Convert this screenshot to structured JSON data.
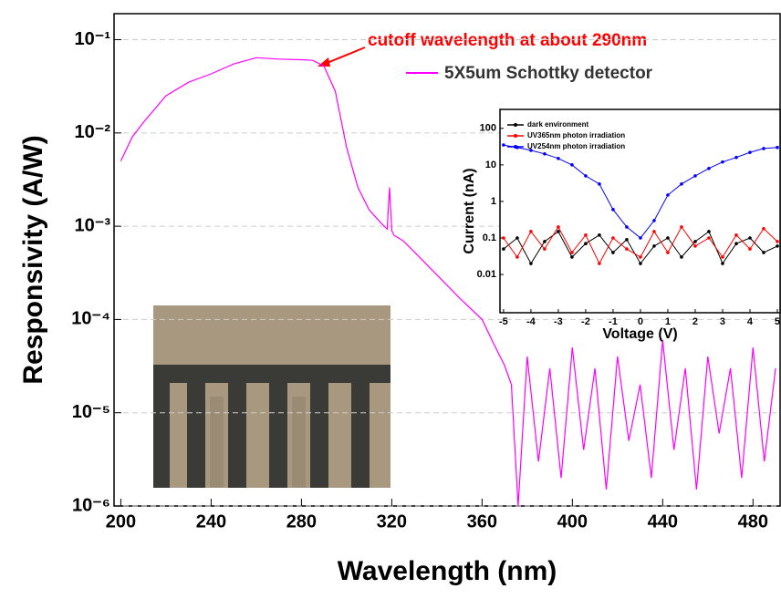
{
  "chart_data": [
    {
      "type": "line",
      "log_y": true,
      "grid": true,
      "xlabel": "Wavelength (nm)",
      "ylabel": "Responsivity (A/W)",
      "annotation": "cutoff wavelength at about 290nm",
      "xlim": [
        197,
        492
      ],
      "ylim": [
        1e-06,
        0.19
      ],
      "xticks": [
        200,
        240,
        280,
        320,
        360,
        400,
        440,
        480
      ],
      "yticks": [
        {
          "value": 1e-06,
          "label": "10⁻⁶"
        },
        {
          "value": 1e-05,
          "label": "10⁻⁵"
        },
        {
          "value": 0.0001,
          "label": "10⁻⁴"
        },
        {
          "value": 0.001,
          "label": "10⁻³"
        },
        {
          "value": 0.01,
          "label": "10⁻²"
        },
        {
          "value": 0.1,
          "label": "10⁻¹"
        }
      ],
      "x": [
        200,
        205,
        210,
        220,
        230,
        240,
        250,
        260,
        270,
        280,
        285,
        290,
        295,
        300,
        305,
        310,
        315,
        318,
        319,
        320,
        321,
        325,
        330,
        340,
        350,
        360,
        365,
        370,
        373,
        376,
        380,
        385,
        390,
        395,
        400,
        405,
        410,
        415,
        420,
        425,
        430,
        435,
        440,
        445,
        450,
        455,
        460,
        465,
        470,
        475,
        480,
        485,
        490
      ],
      "series": [
        {
          "name": "5X5um Schottky detector",
          "color": "#ff00ff",
          "values": [
            0.005,
            0.009,
            0.013,
            0.025,
            0.035,
            0.043,
            0.055,
            0.064,
            0.062,
            0.061,
            0.06,
            0.052,
            0.028,
            0.007,
            0.0026,
            0.0015,
            0.0011,
            0.00093,
            0.0026,
            0.0009,
            0.0008,
            0.0007,
            0.00053,
            0.0003,
            0.00017,
            0.0001,
            5.6e-05,
            3.2e-05,
            2e-05,
            1e-06,
            4e-05,
            3e-06,
            3e-05,
            2e-06,
            5e-05,
            4e-06,
            3e-05,
            1.5e-06,
            4e-05,
            5e-06,
            2e-05,
            2e-06,
            6e-05,
            4e-06,
            3e-05,
            1.5e-06,
            4e-05,
            6e-06,
            3e-05,
            2e-06,
            5e-05,
            3e-06,
            3e-05
          ]
        }
      ]
    },
    {
      "type": "line",
      "log_y": true,
      "grid": false,
      "xlabel": "Voltage (V)",
      "ylabel": "Current (nA)",
      "xlim": [
        -5.13,
        5.1
      ],
      "ylim": [
        0.0009,
        330
      ],
      "xticks": [
        -5,
        -4,
        -3,
        -2,
        -1,
        0,
        1,
        2,
        3,
        4,
        5
      ],
      "yticks": [
        0.01,
        0.1,
        1,
        10,
        100
      ],
      "x": [
        -5,
        -4.5,
        -4,
        -3.5,
        -3,
        -2.5,
        -2,
        -1.5,
        -1,
        -0.5,
        0,
        0.5,
        1,
        1.5,
        2,
        2.5,
        3,
        3.5,
        4,
        4.5,
        5
      ],
      "series": [
        {
          "name": "dark environment",
          "color": "#000000",
          "values": [
            0.05,
            0.1,
            0.02,
            0.08,
            0.15,
            0.03,
            0.07,
            0.12,
            0.04,
            0.09,
            0.02,
            0.06,
            0.1,
            0.03,
            0.08,
            0.15,
            0.02,
            0.07,
            0.1,
            0.04,
            0.06
          ]
        },
        {
          "name": "UV365nm photon irradiation",
          "color": "#ff0000",
          "values": [
            0.1,
            0.03,
            0.15,
            0.05,
            0.2,
            0.04,
            0.12,
            0.02,
            0.1,
            0.05,
            0.03,
            0.15,
            0.04,
            0.2,
            0.06,
            0.1,
            0.03,
            0.12,
            0.05,
            0.18,
            0.08
          ]
        },
        {
          "name": "UV254nm photon irradiation",
          "color": "#0000ff",
          "values": [
            35,
            30,
            25,
            20,
            15,
            10,
            5,
            3,
            0.6,
            0.2,
            0.1,
            0.3,
            1.5,
            3,
            5,
            8,
            12,
            16,
            22,
            28,
            30
          ]
        }
      ]
    }
  ]
}
